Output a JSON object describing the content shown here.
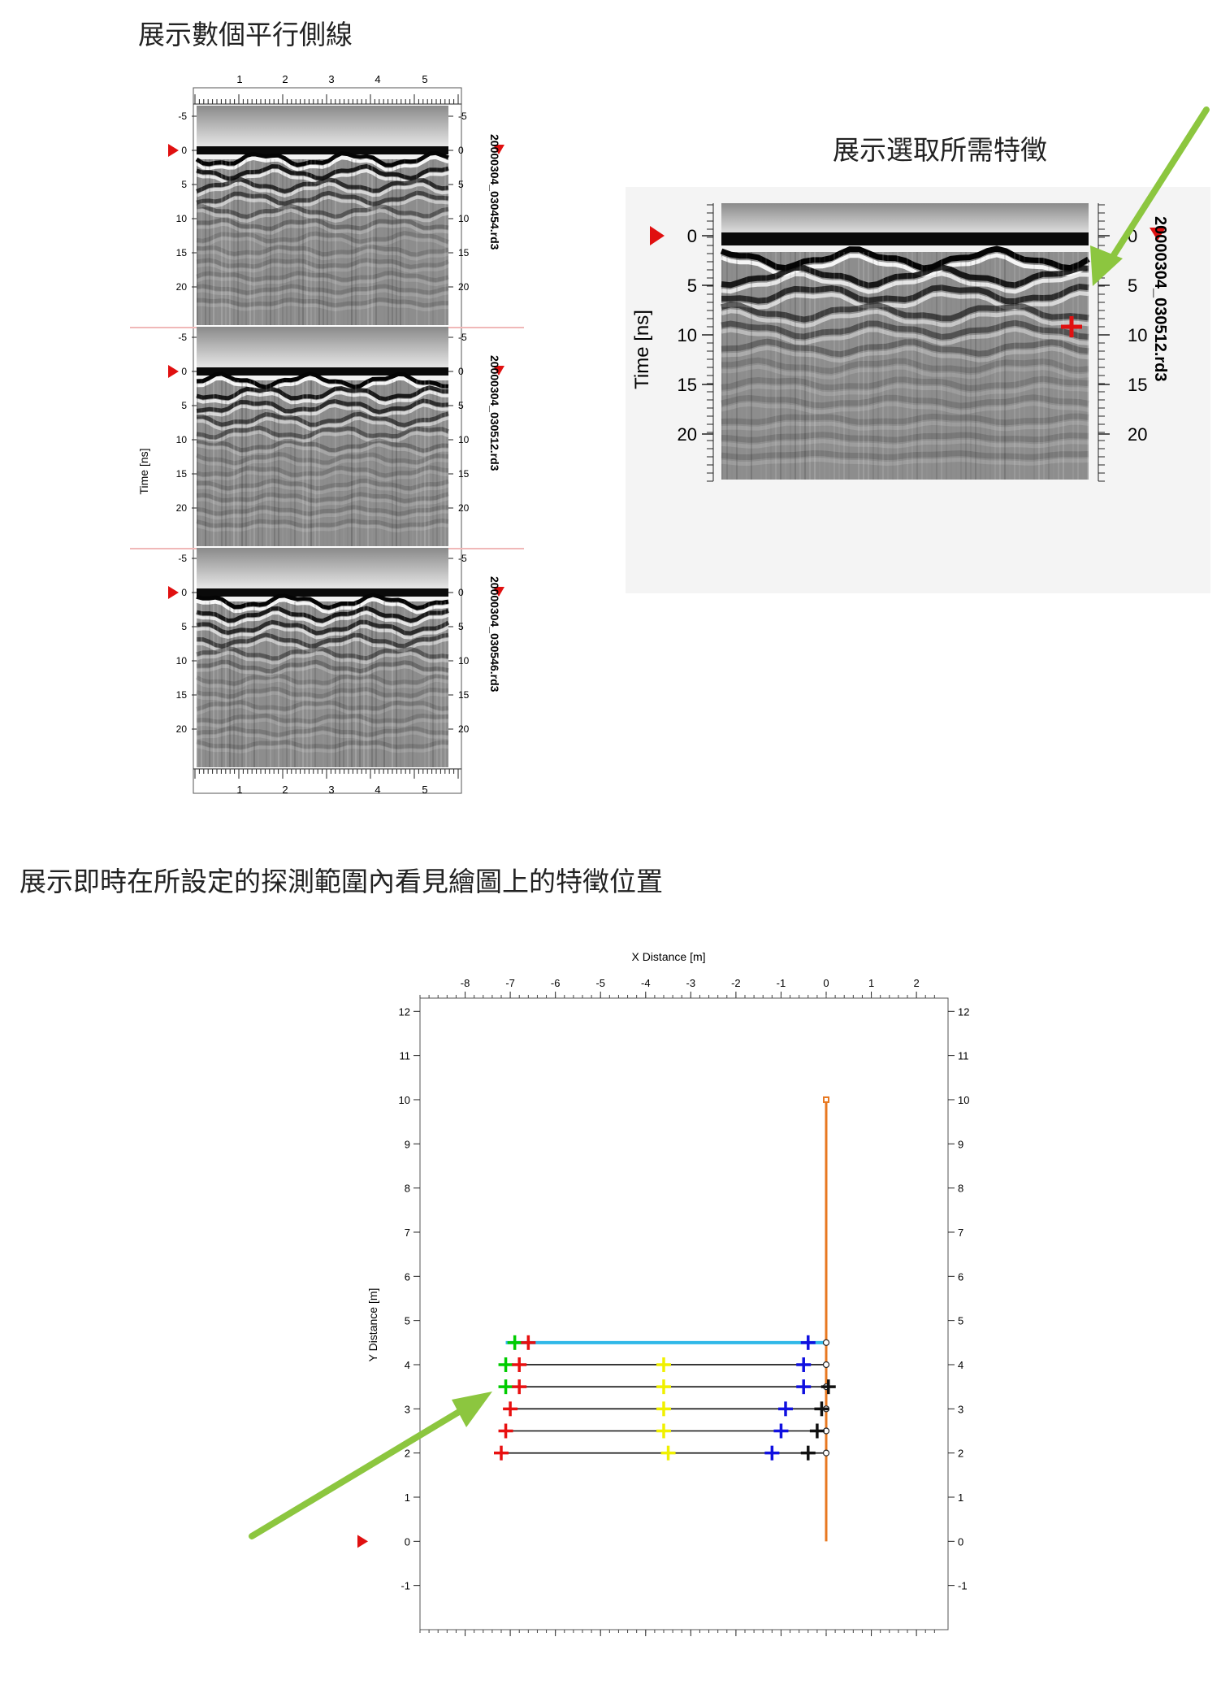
{
  "captions": {
    "parallel": "展示數個平行側線",
    "select": "展示選取所需特徵",
    "realtime": "展示即時在所設定的探測範圍內看見繪圖上的特徵位置"
  },
  "stack": {
    "top_ticks": [
      "1",
      "2",
      "3",
      "4",
      "5"
    ],
    "bottom_ticks": [
      "1",
      "2",
      "3",
      "4",
      "5"
    ],
    "y_ticks": [
      "-5",
      "0",
      "5",
      "10",
      "15",
      "20"
    ],
    "y_label": "Time [ns]",
    "panels": [
      {
        "file": "20000304_030454.rd3"
      },
      {
        "file": "20000304_030512.rd3"
      },
      {
        "file": "20000304_030546.rd3"
      }
    ]
  },
  "single": {
    "y_ticks": [
      "0",
      "5",
      "10",
      "15",
      "20"
    ],
    "y_label": "Time [ns]",
    "file": "20000304_030512.rd3"
  },
  "map": {
    "x_label": "X Distance [m]",
    "y_label": "Y Distance [m]",
    "x_ticks": [
      "-8",
      "-7",
      "-6",
      "-5",
      "-4",
      "-3",
      "-2",
      "-1",
      "0",
      "1",
      "2"
    ],
    "y_ticks": [
      "12",
      "11",
      "10",
      "9",
      "8",
      "7",
      "6",
      "5",
      "4",
      "3",
      "2",
      "1",
      "0",
      "-1"
    ]
  },
  "chart_data": {
    "type": "scatter",
    "xlabel": "X Distance [m]",
    "ylabel": "Y Distance [m]",
    "xlim": [
      -9,
      2.7
    ],
    "ylim": [
      -2,
      12.3
    ],
    "profile_lines": [
      {
        "y": 4.5,
        "x_start": -7.1,
        "x_end": 0,
        "color": "#30b8e8"
      },
      {
        "y": 4.0,
        "x_start": -7.1,
        "x_end": 0,
        "color": "#111111"
      },
      {
        "y": 3.5,
        "x_start": -7.1,
        "x_end": 0,
        "color": "#111111"
      },
      {
        "y": 3.0,
        "x_start": -7.1,
        "x_end": 0,
        "color": "#111111"
      },
      {
        "y": 2.5,
        "x_start": -7.1,
        "x_end": 0,
        "color": "#111111"
      },
      {
        "y": 2.0,
        "x_start": -7.2,
        "x_end": 0,
        "color": "#111111"
      }
    ],
    "baseline": {
      "x": 0,
      "y_start": 0,
      "y_end": 10,
      "color": "#e87820"
    },
    "series": [
      {
        "color": "#00cc00",
        "points": [
          [
            -6.9,
            4.5
          ],
          [
            -7.1,
            4.0
          ],
          [
            -7.1,
            3.5
          ]
        ]
      },
      {
        "color": "#e81010",
        "points": [
          [
            -6.6,
            4.5
          ],
          [
            -6.8,
            4.0
          ],
          [
            -6.8,
            3.5
          ],
          [
            -7.0,
            3.0
          ],
          [
            -7.1,
            2.5
          ],
          [
            -7.2,
            2.0
          ]
        ]
      },
      {
        "color": "#f0f000",
        "points": [
          [
            -3.6,
            4.0
          ],
          [
            -3.6,
            3.5
          ],
          [
            -3.6,
            3.0
          ],
          [
            -3.6,
            2.5
          ],
          [
            -3.5,
            2.0
          ]
        ]
      },
      {
        "color": "#1010e0",
        "points": [
          [
            -0.4,
            4.5
          ],
          [
            -0.5,
            4.0
          ],
          [
            -0.5,
            3.5
          ],
          [
            -0.9,
            3.0
          ],
          [
            -1.0,
            2.5
          ],
          [
            -1.2,
            2.0
          ]
        ]
      },
      {
        "color": "#111111",
        "points": [
          [
            0.05,
            3.5
          ],
          [
            -0.1,
            3.0
          ],
          [
            -0.2,
            2.5
          ],
          [
            -0.4,
            2.0
          ]
        ]
      }
    ],
    "marker_y": 0
  },
  "colors": {
    "arrow": "#8cc63f",
    "marker": "#e01010",
    "separator": "#f0b8b8"
  }
}
